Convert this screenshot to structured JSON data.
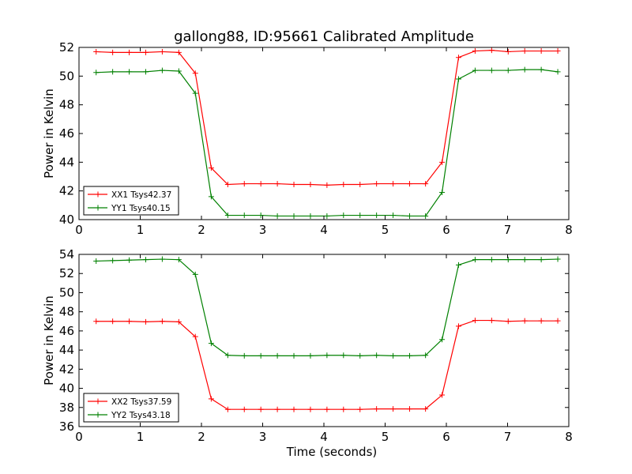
{
  "figure": {
    "title": "gallong88, ID:95661 Calibrated Amplitude"
  },
  "chart_data": [
    {
      "type": "line",
      "title": "gallong88, ID:95661 Calibrated Amplitude",
      "xlabel": "",
      "ylabel": "Power in Kelvin",
      "xlim": [
        0,
        8
      ],
      "ylim": [
        40,
        52
      ],
      "xticks": [
        "0",
        "1",
        "2",
        "3",
        "4",
        "5",
        "6",
        "7",
        "8"
      ],
      "yticks": [
        "40",
        "42",
        "44",
        "46",
        "48",
        "50",
        "52"
      ],
      "grid": false,
      "legend_position": "lower-left",
      "x": [
        0.28,
        0.55,
        0.82,
        1.09,
        1.36,
        1.63,
        1.9,
        2.16,
        2.43,
        2.7,
        2.97,
        3.24,
        3.51,
        3.78,
        4.05,
        4.32,
        4.59,
        4.86,
        5.13,
        5.4,
        5.66,
        5.93,
        6.2,
        6.47,
        6.74,
        7.01,
        7.28,
        7.55,
        7.82
      ],
      "series": [
        {
          "name": "XX1 Tsys42.37",
          "color": "#ff0000",
          "values": [
            51.7,
            51.65,
            51.65,
            51.65,
            51.7,
            51.65,
            50.2,
            43.6,
            42.45,
            42.5,
            42.5,
            42.5,
            42.45,
            42.45,
            42.4,
            42.45,
            42.45,
            42.5,
            42.5,
            42.5,
            42.5,
            44.0,
            51.3,
            51.75,
            51.8,
            51.7,
            51.75,
            51.75,
            51.75
          ]
        },
        {
          "name": "YY1 Tsys40.15",
          "color": "#008000",
          "values": [
            50.25,
            50.3,
            50.3,
            50.3,
            50.4,
            50.35,
            48.8,
            41.6,
            40.3,
            40.3,
            40.3,
            40.25,
            40.25,
            40.25,
            40.25,
            40.3,
            40.3,
            40.3,
            40.3,
            40.25,
            40.25,
            41.9,
            49.8,
            50.4,
            50.4,
            50.4,
            50.45,
            50.45,
            50.3
          ]
        }
      ]
    },
    {
      "type": "line",
      "title": "",
      "xlabel": "Time (seconds)",
      "ylabel": "Power in Kelvin",
      "xlim": [
        0,
        8
      ],
      "ylim": [
        36,
        54
      ],
      "xticks": [
        "0",
        "1",
        "2",
        "3",
        "4",
        "5",
        "6",
        "7",
        "8"
      ],
      "yticks": [
        "36",
        "38",
        "40",
        "42",
        "44",
        "46",
        "48",
        "50",
        "52",
        "54"
      ],
      "grid": false,
      "legend_position": "lower-left",
      "x": [
        0.28,
        0.55,
        0.82,
        1.09,
        1.36,
        1.63,
        1.9,
        2.16,
        2.43,
        2.7,
        2.97,
        3.24,
        3.51,
        3.78,
        4.05,
        4.32,
        4.59,
        4.86,
        5.13,
        5.4,
        5.66,
        5.93,
        6.2,
        6.47,
        6.74,
        7.01,
        7.28,
        7.55,
        7.82
      ],
      "series": [
        {
          "name": "XX2 Tsys37.59",
          "color": "#ff0000",
          "values": [
            47.0,
            47.0,
            47.0,
            46.95,
            47.0,
            46.95,
            45.4,
            38.9,
            37.8,
            37.8,
            37.8,
            37.8,
            37.8,
            37.8,
            37.8,
            37.8,
            37.8,
            37.85,
            37.85,
            37.85,
            37.85,
            39.3,
            46.5,
            47.1,
            47.1,
            47.0,
            47.05,
            47.05,
            47.05
          ]
        },
        {
          "name": "YY2 Tsys43.18",
          "color": "#008000",
          "values": [
            53.3,
            53.35,
            53.4,
            53.45,
            53.5,
            53.45,
            51.9,
            44.7,
            43.45,
            43.4,
            43.4,
            43.4,
            43.4,
            43.4,
            43.45,
            43.45,
            43.4,
            43.45,
            43.4,
            43.4,
            43.45,
            45.1,
            52.9,
            53.45,
            53.45,
            53.45,
            53.45,
            53.45,
            53.5
          ]
        }
      ]
    }
  ]
}
